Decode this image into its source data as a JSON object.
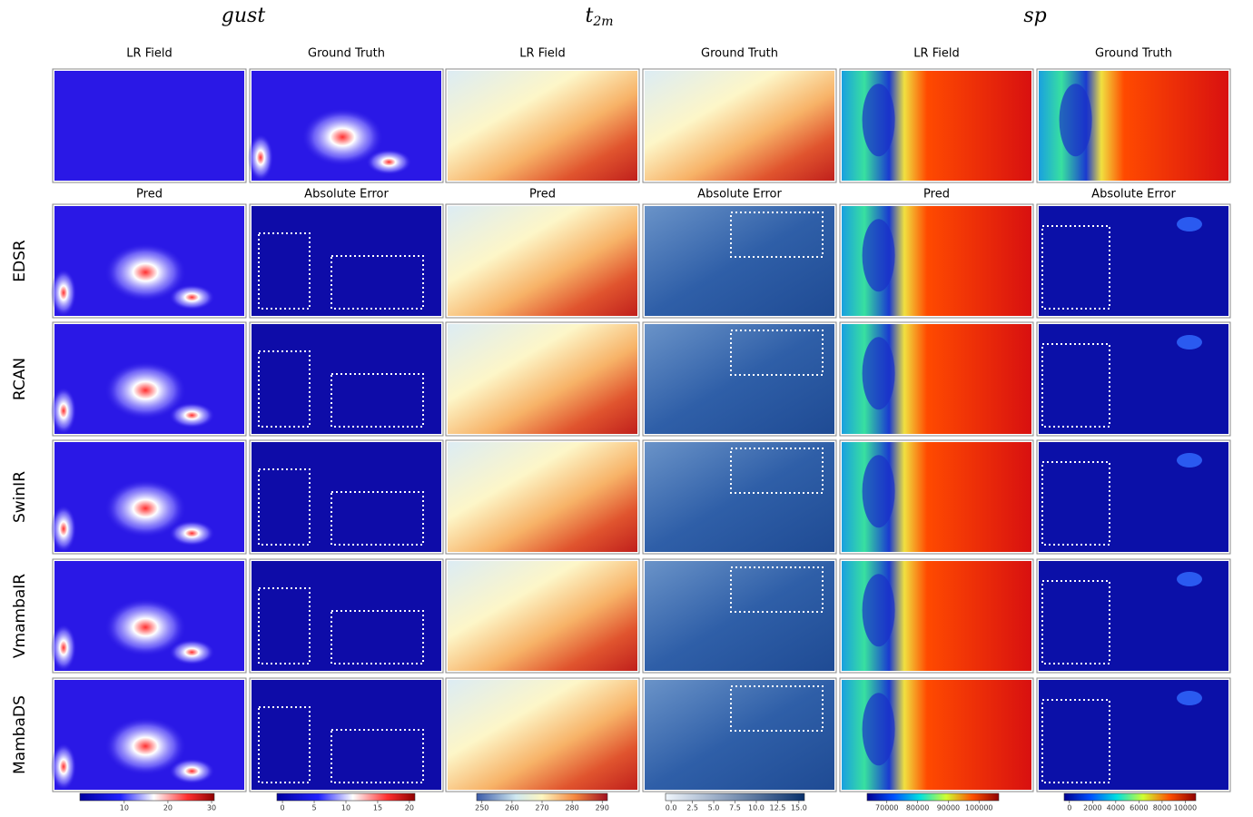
{
  "headers": [
    {
      "text": "gust"
    },
    {
      "text": "t",
      "subscript": "2m"
    },
    {
      "text": "sp"
    }
  ],
  "top_titles": [
    "LR Field",
    "Ground Truth",
    "LR Field",
    "Ground Truth",
    "LR Field",
    "Ground Truth"
  ],
  "second_titles": [
    "Pred",
    "Absolute Error",
    "Pred",
    "Absolute Error",
    "Pred",
    "Absolute Error"
  ],
  "row_labels": [
    "EDSR",
    "RCAN",
    "SwinIR",
    "VmambaIR",
    "MambaDS"
  ],
  "colorbars": [
    {
      "ticks": [
        "10",
        "20",
        "30"
      ]
    },
    {
      "ticks": [
        "0",
        "5",
        "10",
        "15",
        "20"
      ]
    },
    {
      "ticks": [
        "250",
        "260",
        "270",
        "280",
        "290"
      ]
    },
    {
      "ticks": [
        "0.0",
        "2.5",
        "5.0",
        "7.5",
        "10.0",
        "12.5",
        "15.0"
      ]
    },
    {
      "ticks": [
        "70000",
        "80000",
        "90000",
        "100000"
      ]
    },
    {
      "ticks": [
        "0",
        "2000",
        "4000",
        "6000",
        "8000",
        "10000"
      ]
    }
  ]
}
